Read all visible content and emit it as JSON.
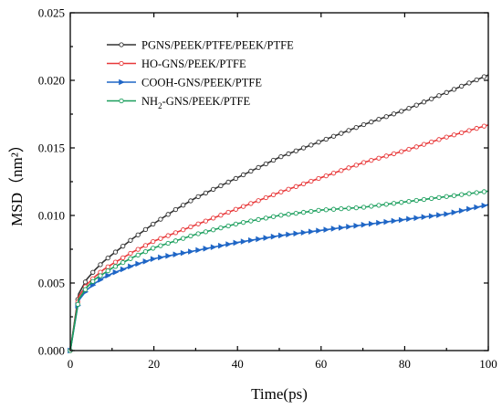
{
  "chart_data": {
    "type": "line",
    "xlabel": "Time(ps)",
    "ylabel": "MSD（nm²）",
    "xlim": [
      0,
      100
    ],
    "ylim": [
      0,
      0.025
    ],
    "x_ticks": [
      "0",
      "20",
      "40",
      "60",
      "80",
      "100"
    ],
    "y_ticks": [
      "0.000",
      "0.005",
      "0.010",
      "0.015",
      "0.020",
      "0.025"
    ],
    "grid": false,
    "legend_position": "top-left",
    "x": [
      0,
      2,
      4,
      6,
      8,
      10,
      15,
      20,
      25,
      30,
      40,
      50,
      60,
      70,
      80,
      90,
      100
    ],
    "series": [
      {
        "name": "PGNS/PEEK/PTFE/PEEK/PTFE",
        "name_parts": [
          "PGNS/PEEK/PTFE/PEEK/PTFE"
        ],
        "color": "#333333",
        "marker": "circle",
        "values": [
          0,
          0.0042,
          0.0053,
          0.006,
          0.0066,
          0.0071,
          0.0083,
          0.0094,
          0.0104,
          0.0113,
          0.0128,
          0.0143,
          0.0155,
          0.0167,
          0.0178,
          0.0191,
          0.0204
        ]
      },
      {
        "name": "HO-GNS/PEEK/PTFE",
        "name_parts": [
          "HO-GNS/PEEK/PTFE"
        ],
        "color": "#e8393a",
        "marker": "circle",
        "values": [
          0,
          0.004,
          0.0049,
          0.0055,
          0.006,
          0.0064,
          0.0073,
          0.0081,
          0.0087,
          0.0093,
          0.0105,
          0.0117,
          0.0128,
          0.0139,
          0.0148,
          0.0158,
          0.0167
        ]
      },
      {
        "name": "COOH-GNS/PEEK/PTFE",
        "name_parts": [
          "COOH-GNS/PEEK/PTFE"
        ],
        "color": "#1f66c6",
        "marker": "triangle-right",
        "values": [
          0,
          0.0037,
          0.0045,
          0.005,
          0.0054,
          0.0057,
          0.0063,
          0.0068,
          0.0071,
          0.0074,
          0.008,
          0.0085,
          0.0089,
          0.0093,
          0.0097,
          0.0101,
          0.0108
        ]
      },
      {
        "name": "NH2-GNS/PEEK/PTFE",
        "name_parts": [
          "NH",
          "2",
          "-GNS/PEEK/PTFE"
        ],
        "color": "#1a9e5c",
        "marker": "circle",
        "values": [
          0,
          0.0038,
          0.0047,
          0.0053,
          0.0057,
          0.0061,
          0.0069,
          0.0076,
          0.0081,
          0.0086,
          0.0094,
          0.01,
          0.0104,
          0.0106,
          0.011,
          0.0114,
          0.0118
        ]
      }
    ]
  }
}
